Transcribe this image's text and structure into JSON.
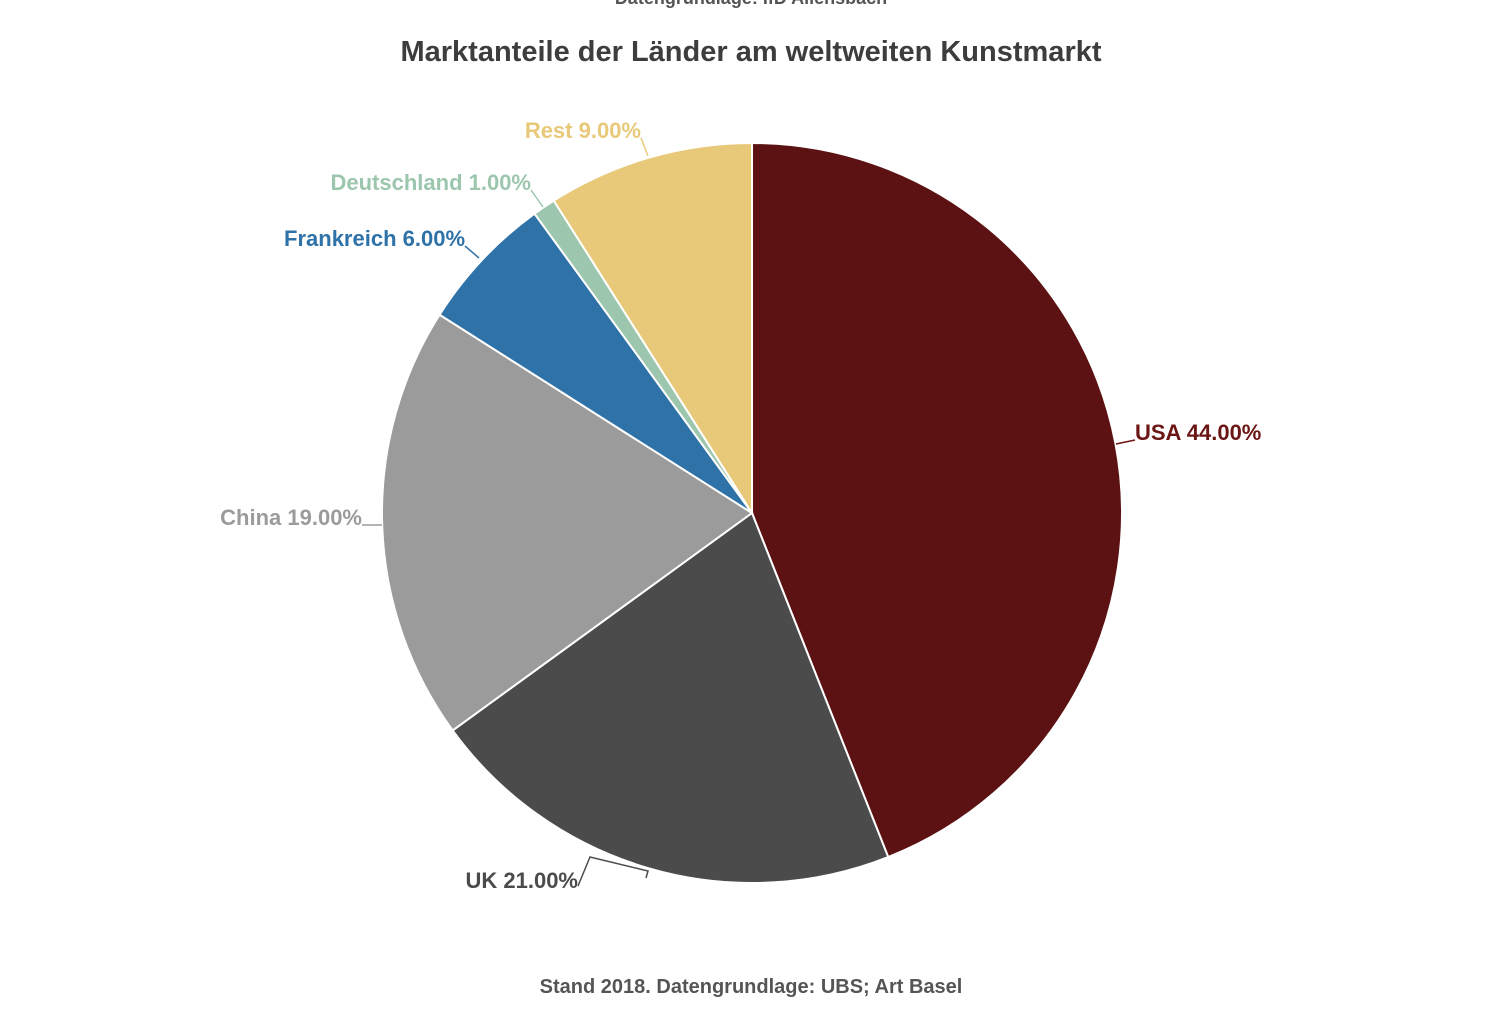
{
  "header": {
    "cut_off_text": "Datengrundlage: IfD Allensbach"
  },
  "chart_data": {
    "type": "pie",
    "title": "Marktanteile der Länder am weltweiten Kunstmarkt",
    "unit": "%",
    "slices": [
      {
        "name": "USA",
        "value": 44.0,
        "label": "USA 44.00%",
        "color": "#5c1212",
        "label_color": "#6b1515"
      },
      {
        "name": "UK",
        "value": 21.0,
        "label": "UK 21.00%",
        "color": "#4b4b4b",
        "label_color": "#4b4b4b"
      },
      {
        "name": "China",
        "value": 19.0,
        "label": "China 19.00%",
        "color": "#9b9b9b",
        "label_color": "#9b9b9b"
      },
      {
        "name": "Frankreich",
        "value": 6.0,
        "label": "Frankreich 6.00%",
        "color": "#2f72a8",
        "label_color": "#2f72a8"
      },
      {
        "name": "Deutschland",
        "value": 1.0,
        "label": "Deutschland 1.00%",
        "color": "#9cc6ad",
        "label_color": "#9cc6ad"
      },
      {
        "name": "Rest",
        "value": 9.0,
        "label": "Rest 9.00%",
        "color": "#e8c97a",
        "label_color": "#e8c97a"
      }
    ],
    "start_angle": "top",
    "direction": "clockwise"
  },
  "footer": {
    "source_note": "Stand 2018. Datengrundlage: UBS; Art Basel"
  }
}
